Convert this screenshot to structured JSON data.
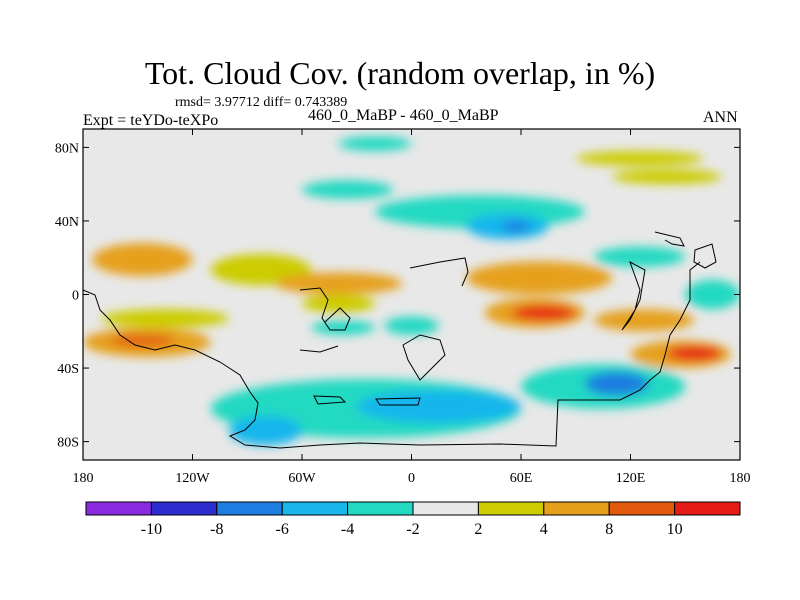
{
  "header": {
    "title": "Tot. Cloud Cov. (random overlap, in %)",
    "stats": "rmsd= 3.97712 diff= 0.743389",
    "experiment": "Expt = teYDo-teXPo",
    "case": "460_0_MaBP - 460_0_MaBP",
    "season": "ANN"
  },
  "chart_data": {
    "type": "heatmap",
    "title": "Tot. Cloud Cov. (random overlap, in %)",
    "subtitle": "460_0_MaBP - 460_0_MaBP",
    "xlabel": "",
    "ylabel": "",
    "xlim": [
      -180,
      180
    ],
    "ylim": [
      -90,
      90
    ],
    "x_ticks": [
      -180,
      -120,
      -60,
      0,
      60,
      120,
      180
    ],
    "x_tick_labels": [
      "180",
      "120W",
      "60W",
      "0",
      "60E",
      "120E",
      "180"
    ],
    "y_ticks": [
      80,
      40,
      0,
      -40,
      -80
    ],
    "y_tick_labels": [
      "80N",
      "40N",
      "0",
      "40S",
      "80S"
    ],
    "grid": false,
    "legend": "bottom colorbar",
    "colorbar": {
      "levels": [
        -10,
        -8,
        -6,
        -4,
        -2,
        2,
        4,
        8,
        10
      ],
      "labels": [
        "-10",
        "-8",
        "-6",
        "-4",
        "-2",
        "2",
        "4",
        "8",
        "10"
      ],
      "colors": [
        "#8a2be2",
        "#2c2ccf",
        "#1e7de0",
        "#19b6ec",
        "#23d9c2",
        "#e8e8e8",
        "#cccc00",
        "#e6a01c",
        "#e35a0c",
        "#e61a16"
      ]
    },
    "regions": [
      {
        "lon": [
          -175,
          -120
        ],
        "lat": [
          10,
          28
        ],
        "value": 4
      },
      {
        "lon": [
          -150,
          -125
        ],
        "lat": [
          14,
          22
        ],
        "value": 6
      },
      {
        "lon": [
          -170,
          -100
        ],
        "lat": [
          -18,
          -8
        ],
        "value": 3
      },
      {
        "lon": [
          -180,
          -110
        ],
        "lat": [
          -34,
          -18
        ],
        "value": 6
      },
      {
        "lon": [
          -165,
          -130
        ],
        "lat": [
          -28,
          -22
        ],
        "value": 9
      },
      {
        "lon": [
          -110,
          -55
        ],
        "lat": [
          5,
          22
        ],
        "value": 3
      },
      {
        "lon": [
          -75,
          -5
        ],
        "lat": [
          0,
          12
        ],
        "value": 5
      },
      {
        "lon": [
          -60,
          -20
        ],
        "lat": [
          -10,
          0
        ],
        "value": 3
      },
      {
        "lon": [
          -55,
          -20
        ],
        "lat": [
          -22,
          -14
        ],
        "value": -3
      },
      {
        "lon": [
          -15,
          15
        ],
        "lat": [
          -22,
          -12
        ],
        "value": -4
      },
      {
        "lon": [
          30,
          110
        ],
        "lat": [
          0,
          18
        ],
        "value": 4
      },
      {
        "lon": [
          40,
          95
        ],
        "lat": [
          -18,
          -2
        ],
        "value": 7
      },
      {
        "lon": [
          55,
          90
        ],
        "lat": [
          -14,
          -6
        ],
        "value": 11
      },
      {
        "lon": [
          100,
          155
        ],
        "lat": [
          -20,
          -8
        ],
        "value": 5
      },
      {
        "lon": [
          120,
          175
        ],
        "lat": [
          -40,
          -25
        ],
        "value": 7
      },
      {
        "lon": [
          140,
          170
        ],
        "lat": [
          -36,
          -28
        ],
        "value": 10
      },
      {
        "lon": [
          -20,
          95
        ],
        "lat": [
          36,
          54
        ],
        "value": -3
      },
      {
        "lon": [
          30,
          75
        ],
        "lat": [
          30,
          44
        ],
        "value": -5
      },
      {
        "lon": [
          50,
          65
        ],
        "lat": [
          34,
          40
        ],
        "value": -8
      },
      {
        "lon": [
          -60,
          -10
        ],
        "lat": [
          52,
          62
        ],
        "value": -3
      },
      {
        "lon": [
          -40,
          0
        ],
        "lat": [
          78,
          86
        ],
        "value": -3
      },
      {
        "lon": [
          90,
          160
        ],
        "lat": [
          70,
          78
        ],
        "value": 3
      },
      {
        "lon": [
          110,
          170
        ],
        "lat": [
          60,
          68
        ],
        "value": 2
      },
      {
        "lon": [
          100,
          150
        ],
        "lat": [
          15,
          26
        ],
        "value": -3
      },
      {
        "lon": [
          150,
          180
        ],
        "lat": [
          -8,
          8
        ],
        "value": -4
      },
      {
        "lon": [
          -110,
          60
        ],
        "lat": [
          -78,
          -46
        ],
        "value": -4
      },
      {
        "lon": [
          -30,
          60
        ],
        "lat": [
          -70,
          -52
        ],
        "value": -6
      },
      {
        "lon": [
          60,
          150
        ],
        "lat": [
          -62,
          -38
        ],
        "value": -4
      },
      {
        "lon": [
          95,
          130
        ],
        "lat": [
          -55,
          -42
        ],
        "value": -7
      },
      {
        "lon": [
          -100,
          -60
        ],
        "lat": [
          -82,
          -66
        ],
        "value": -5
      }
    ]
  }
}
